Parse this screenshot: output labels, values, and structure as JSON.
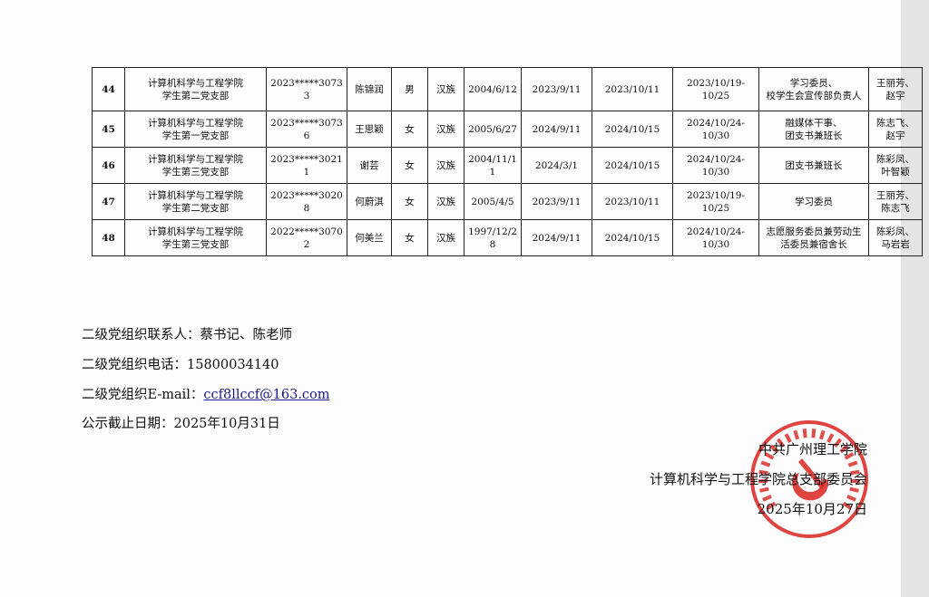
{
  "table": {
    "rows": [
      {
        "no": "44",
        "org": [
          "计算机科学与工程学院",
          "学生第二党支部"
        ],
        "id": "2023*****30733",
        "name": "陈锦润",
        "gender": "男",
        "ethnicity": "汉族",
        "birth": "2004/6/12",
        "apply": "2023/9/11",
        "activist": "2023/10/11",
        "training": [
          "2023/10/19-",
          "10/25"
        ],
        "duties": [
          "学习委员、",
          "校学生会宣传部负责人"
        ],
        "contacts": [
          "王丽芳、",
          "赵宇"
        ]
      },
      {
        "no": "45",
        "org": [
          "计算机科学与工程学院",
          "学生第一党支部"
        ],
        "id": "2023*****30736",
        "name": "王思颖",
        "gender": "女",
        "ethnicity": "汉族",
        "birth": "2005/6/27",
        "apply": "2024/9/11",
        "activist": "2024/10/15",
        "training": [
          "2024/10/24-",
          "10/30"
        ],
        "duties": [
          "融媒体干事、",
          "团支书兼班长"
        ],
        "contacts": [
          "陈志飞、",
          "赵宇"
        ]
      },
      {
        "no": "46",
        "org": [
          "计算机科学与工程学院",
          "学生第三党支部"
        ],
        "id": "2023*****30211",
        "name": "谢芸",
        "gender": "女",
        "ethnicity": "汉族",
        "birth": "2004/11/11",
        "apply": "2024/3/1",
        "activist": "2024/10/15",
        "training": [
          "2024/10/24-",
          "10/30"
        ],
        "duties": [
          "团支书兼班长",
          ""
        ],
        "contacts": [
          "陈彩凤、",
          "叶智颖"
        ]
      },
      {
        "no": "47",
        "org": [
          "计算机科学与工程学院",
          "学生第二党支部"
        ],
        "id": "2023*****30208",
        "name": "何蔚淇",
        "gender": "女",
        "ethnicity": "汉族",
        "birth": "2005/4/5",
        "apply": "2023/9/11",
        "activist": "2023/10/11",
        "training": [
          "2023/10/19-",
          "10/25"
        ],
        "duties": [
          "学习委员",
          ""
        ],
        "contacts": [
          "王丽芳、",
          "陈志飞"
        ]
      },
      {
        "no": "48",
        "org": [
          "计算机科学与工程学院",
          "学生第三党支部"
        ],
        "id": "2022*****30702",
        "name": "何美兰",
        "gender": "女",
        "ethnicity": "汉族",
        "birth": "1997/12/28",
        "apply": "2024/9/11",
        "activist": "2024/10/15",
        "training": [
          "2024/10/24-",
          "10/30"
        ],
        "duties": [
          "志愿服务委员兼劳动生",
          "活委员兼宿舍长"
        ],
        "contacts": [
          "陈彩凤、",
          "马岩岩"
        ]
      }
    ]
  },
  "footer": {
    "contact_label": "二级党组织联系人：",
    "contact_value": "蔡书记、陈老师",
    "phone_label": "二级党组织电话：",
    "phone_value": "15800034140",
    "email_label": "二级党组织E-mail：",
    "email_value": "ccf8llccf@163.com",
    "deadline_label": "公示截止日期：",
    "deadline_value": "2025年10月31日"
  },
  "signature": {
    "line1": "中共广州理工学院",
    "line2": "计算机科学与工程学院总支部委员会",
    "date": "2025年10月27日"
  },
  "stamp": {
    "text": "中共广州理工学院计算机科学与工程学院总支部委员会",
    "color": "#d9231f"
  }
}
